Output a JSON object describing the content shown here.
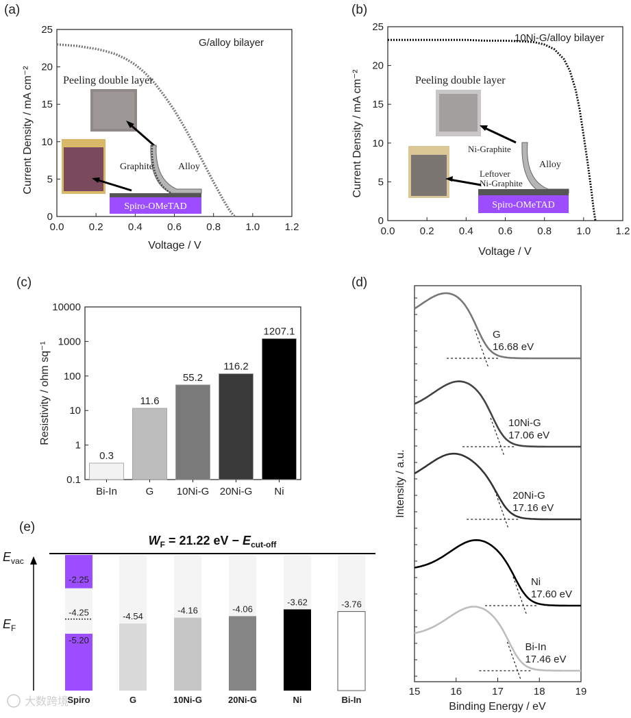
{
  "panel_labels": {
    "a": "(a)",
    "b": "(b)",
    "c": "(c)",
    "d": "(d)",
    "e": "(e)"
  },
  "chart_data": [
    {
      "id": "a",
      "type": "line",
      "annotation": "G/alloy bilayer",
      "xlabel": "Voltage / V",
      "ylabel": "Current Density / mA cm⁻²",
      "xlim": [
        0.0,
        1.2
      ],
      "ylim": [
        0,
        25
      ],
      "xticks": [
        "0.0",
        "0.2",
        "0.4",
        "0.6",
        "0.8",
        "1.0",
        "1.2"
      ],
      "yticks": [
        "0",
        "5",
        "10",
        "15",
        "20",
        "25"
      ],
      "series": [
        {
          "x": [
            0,
            0.05,
            0.1,
            0.15,
            0.2,
            0.25,
            0.3,
            0.35,
            0.4,
            0.45,
            0.5,
            0.55,
            0.6,
            0.65,
            0.7,
            0.75,
            0.8,
            0.85,
            0.88,
            0.9,
            0.91
          ],
          "values": [
            23.0,
            22.9,
            22.8,
            22.6,
            22.4,
            22.1,
            21.7,
            21.1,
            20.3,
            19.2,
            17.8,
            16.1,
            14.2,
            12.0,
            9.6,
            7.1,
            4.6,
            2.2,
            0.9,
            0.2,
            0
          ]
        }
      ],
      "inset": {
        "caption": "Peeling double layer",
        "graphite": "Graphite",
        "alloy": "Alloy",
        "spiro": "Spiro-OMeTAD"
      }
    },
    {
      "id": "b",
      "type": "line",
      "annotation": "10Ni-G/alloy bilayer",
      "xlabel": "Voltage / V",
      "ylabel": "Current Density / mA cm⁻²",
      "xlim": [
        0.0,
        1.2
      ],
      "ylim": [
        0,
        25
      ],
      "xticks": [
        "0.0",
        "0.2",
        "0.4",
        "0.6",
        "0.8",
        "1.0",
        "1.2"
      ],
      "yticks": [
        "0",
        "5",
        "10",
        "15",
        "20",
        "25"
      ],
      "series": [
        {
          "x": [
            0,
            0.1,
            0.2,
            0.3,
            0.4,
            0.5,
            0.6,
            0.7,
            0.75,
            0.8,
            0.85,
            0.9,
            0.93,
            0.96,
            0.98,
            1.0,
            1.02,
            1.04,
            1.05,
            1.06
          ],
          "values": [
            23.3,
            23.3,
            23.3,
            23.3,
            23.3,
            23.2,
            23.2,
            23.1,
            23.0,
            22.7,
            22.1,
            20.8,
            19.3,
            16.8,
            14.3,
            11.0,
            7.6,
            3.8,
            1.7,
            0
          ]
        }
      ],
      "inset": {
        "caption": "Peeling double layer",
        "ni_graphite": "Ni-Graphite",
        "leftover1": "Leftover",
        "leftover2": "Ni-Graphite",
        "alloy": "Alloy",
        "spiro": "Spiro-OMeTAD"
      }
    },
    {
      "id": "c",
      "type": "bar",
      "ylabel": "Resistivity / ohm sq⁻¹",
      "scale": "log",
      "ylim": [
        0.1,
        10000
      ],
      "yticks": [
        "0.1",
        "1",
        "10",
        "100",
        "1000",
        "10000"
      ],
      "categories": [
        "Bi-In",
        "G",
        "10Ni-G",
        "20Ni-G",
        "Ni"
      ],
      "values": [
        0.3,
        11.6,
        55.2,
        116.2,
        1207.1
      ],
      "labels": [
        "0.3",
        "11.6",
        "55.2",
        "116.2",
        "1207.1"
      ],
      "colors": [
        "#f2f2f2",
        "#bdbdbd",
        "#7a7a7a",
        "#3a3a3a",
        "#000000"
      ]
    },
    {
      "id": "d",
      "type": "line",
      "xlabel": "Binding Energy / eV",
      "ylabel": "Intensity / a.u.",
      "xlim": [
        15,
        19
      ],
      "xticks": [
        "15",
        "16",
        "17",
        "18",
        "19"
      ],
      "series": [
        {
          "name": "G",
          "value": "16.68 eV",
          "cutoff": 16.68,
          "peak": 15.8,
          "color": "#777777"
        },
        {
          "name": "10Ni-G",
          "value": "17.06 eV",
          "cutoff": 17.06,
          "peak": 16.1,
          "color": "#444444"
        },
        {
          "name": "20Ni-G",
          "value": "17.16 eV",
          "cutoff": 17.16,
          "peak": 15.95,
          "color": "#333333"
        },
        {
          "name": "Ni",
          "value": "17.60 eV",
          "cutoff": 17.6,
          "peak": 16.5,
          "color": "#000000"
        },
        {
          "name": "Bi-In",
          "value": "17.46 eV",
          "cutoff": 17.46,
          "peak": 16.45,
          "color": "#bdbdbd"
        }
      ]
    },
    {
      "id": "e",
      "type": "bar",
      "equation": {
        "w": "W",
        "f": "F",
        "mid": " = 21.22 eV − ",
        "e": "E",
        "sub": "cut-off"
      },
      "evac": {
        "e": "E",
        "sub": "vac"
      },
      "ef": {
        "e": "E",
        "sub": "F"
      },
      "categories": [
        "Spiro",
        "G",
        "10Ni-G",
        "20Ni-G",
        "Ni",
        "Bi-In"
      ],
      "values": [
        -4.25,
        -4.54,
        -4.16,
        -4.06,
        -3.62,
        -3.76
      ],
      "labels": [
        "-4.25",
        "-4.54",
        "-4.16",
        "-4.06",
        "-3.62",
        "-3.76"
      ],
      "spiro_homo": "-5.20",
      "spiro_lumo": "-2.25",
      "colors": [
        "#9b4dff",
        "#d9d9d9",
        "#c6c6c6",
        "#858585",
        "#000000",
        "#ffffff"
      ]
    }
  ],
  "watermark": "大数跨境"
}
